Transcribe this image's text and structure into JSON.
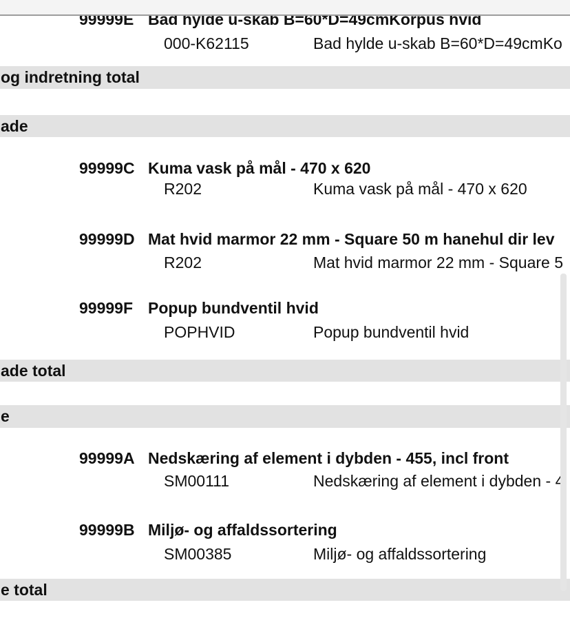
{
  "colors": {
    "toolbar_strip": "#f4f4f4",
    "toolbar_divider": "#9c9c9c",
    "section_band": "#e2e2e2",
    "text": "#111111",
    "scrollbar_thumb": "#e5e5e5"
  },
  "items": [
    {
      "id": "99999E",
      "title": "Bad hylde u-skab B=60*D=49cmKorpus hvid",
      "code": "000-K62115",
      "description": "Bad hylde u-skab B=60*D=49cmKo"
    },
    {
      "id": "99999C",
      "title": "Kuma vask på mål - 470 x 620",
      "code": "R202",
      "description": "Kuma vask på mål - 470 x 620"
    },
    {
      "id": "99999D",
      "title": "Mat hvid marmor 22 mm - Square 50 m hanehul dir lev",
      "code": "R202",
      "description": "Mat hvid marmor 22 mm - Square 5"
    },
    {
      "id": "99999F",
      "title": "Popup bundventil hvid",
      "code": "POPHVID",
      "description": "Popup bundventil hvid"
    },
    {
      "id": "99999A",
      "title": "Nedskæring af element i dybden - 455, incl front",
      "code": "SM00111",
      "description": "Nedskæring af element i dybden - 4"
    },
    {
      "id": "99999B",
      "title": "Miljø- og affaldssortering",
      "code": "SM00385",
      "description": "Miljø- og affaldssortering"
    }
  ],
  "bands": [
    {
      "label": "og indretning total"
    },
    {
      "label": "ade"
    },
    {
      "label": "ade total"
    },
    {
      "label": "e"
    },
    {
      "label": "e total"
    }
  ]
}
